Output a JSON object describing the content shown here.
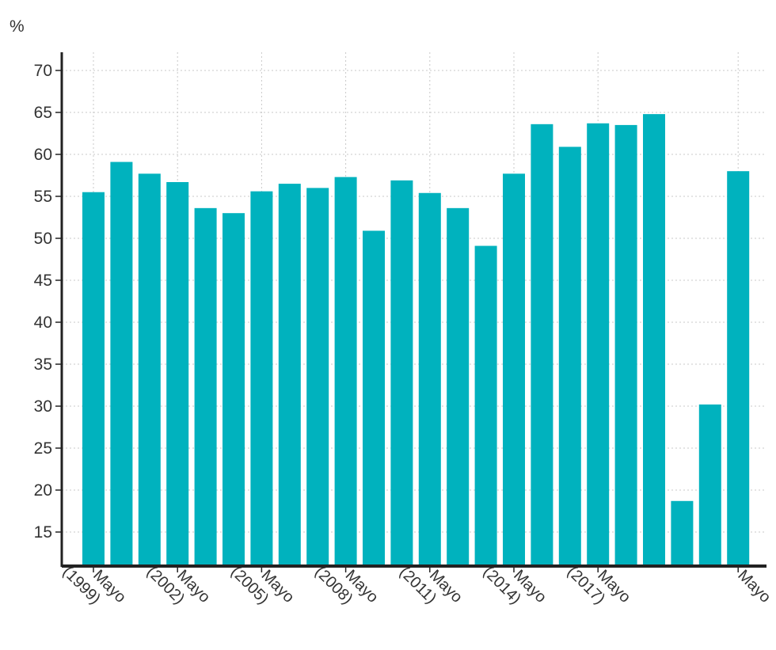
{
  "chart_data": {
    "type": "bar",
    "unit_label": "%",
    "ylim": [
      11,
      71
    ],
    "y_ticks": [
      15,
      20,
      25,
      30,
      35,
      40,
      45,
      50,
      55,
      60,
      65,
      70
    ],
    "grid": true,
    "bar_color": "#00b2be",
    "values": [
      55.5,
      59.1,
      57.7,
      56.7,
      53.6,
      53.0,
      55.6,
      56.5,
      56.0,
      57.3,
      50.9,
      56.9,
      55.4,
      53.6,
      49.1,
      57.7,
      63.6,
      60.9,
      63.7,
      63.5,
      64.8,
      18.7,
      30.2,
      58.0
    ],
    "x_ticks": [
      {
        "index": 0,
        "lines": [
          "Mayo",
          "(1999)"
        ]
      },
      {
        "index": 3,
        "lines": [
          "Mayo",
          "(2002)"
        ]
      },
      {
        "index": 6,
        "lines": [
          "Mayo",
          "(2005)"
        ]
      },
      {
        "index": 9,
        "lines": [
          "Mayo",
          "(2008)"
        ]
      },
      {
        "index": 12,
        "lines": [
          "Mayo",
          "(2011)"
        ]
      },
      {
        "index": 15,
        "lines": [
          "Mayo",
          "(2014)"
        ]
      },
      {
        "index": 18,
        "lines": [
          "Mayo",
          "(2017)"
        ]
      },
      {
        "index": 23,
        "lines": [
          "Mayo"
        ]
      }
    ]
  }
}
